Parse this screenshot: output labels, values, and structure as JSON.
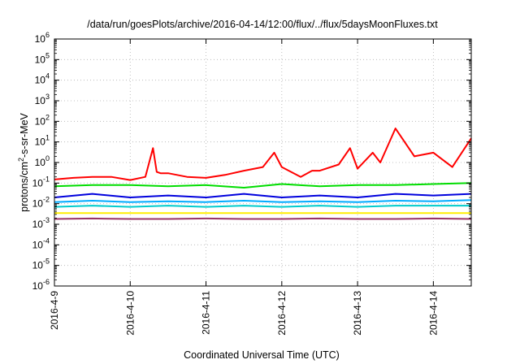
{
  "chart_data": {
    "type": "line",
    "title": "/data/run/goesPlots/archive/2016-04-14/12:00/flux/../flux/5daysMoonFluxes.txt",
    "xlabel": "Coordinated Universal Time (UTC)",
    "ylabel": "protons/cm²-s-sr-MeV",
    "ylabel_parts": {
      "pre": "protons/cm",
      "sup": "2",
      "post": "-s-sr-MeV"
    },
    "y_scale": "log",
    "ylim": [
      1e-06,
      1000000.0
    ],
    "xlim": [
      "2016-04-09",
      "2016-04-14 12:00"
    ],
    "x_ticks": [
      "2016-4-9",
      "2016-4-10",
      "2016-4-11",
      "2016-4-12",
      "2016-4-13",
      "2016-4-14"
    ],
    "y_ticks": [
      {
        "base": "10",
        "exp": "-6"
      },
      {
        "base": "10",
        "exp": "-5"
      },
      {
        "base": "10",
        "exp": "-4"
      },
      {
        "base": "10",
        "exp": "-3"
      },
      {
        "base": "10",
        "exp": "-2"
      },
      {
        "base": "10",
        "exp": "-1"
      },
      {
        "base": "10",
        "exp": "0"
      },
      {
        "base": "10",
        "exp": "1"
      },
      {
        "base": "10",
        "exp": "2"
      },
      {
        "base": "10",
        "exp": "3"
      },
      {
        "base": "10",
        "exp": "4"
      },
      {
        "base": "10",
        "exp": "5"
      },
      {
        "base": "10",
        "exp": "6"
      }
    ],
    "grid": true,
    "x_days_start": "2016-04-09",
    "series": [
      {
        "color": "#ff0000",
        "x": [
          0,
          0.25,
          0.5,
          0.75,
          1.0,
          1.2,
          1.3,
          1.35,
          1.4,
          1.5,
          1.75,
          2.0,
          2.25,
          2.5,
          2.75,
          2.9,
          3.0,
          3.25,
          3.4,
          3.5,
          3.75,
          3.9,
          4.0,
          4.2,
          4.3,
          4.5,
          4.75,
          5.0,
          5.25,
          5.5
        ],
        "y": [
          0.15,
          0.18,
          0.2,
          0.2,
          0.14,
          0.2,
          5.0,
          0.35,
          0.3,
          0.3,
          0.2,
          0.18,
          0.25,
          0.4,
          0.6,
          3.0,
          0.6,
          0.2,
          0.4,
          0.4,
          0.8,
          5.0,
          0.5,
          3.0,
          1.0,
          45.0,
          2.0,
          3.0,
          0.6,
          15.0
        ]
      },
      {
        "color": "#00dd00",
        "x": [
          0,
          0.5,
          1.0,
          1.5,
          2.0,
          2.5,
          3.0,
          3.5,
          4.0,
          4.5,
          5.0,
          5.5
        ],
        "y": [
          0.07,
          0.08,
          0.08,
          0.07,
          0.08,
          0.06,
          0.09,
          0.07,
          0.08,
          0.08,
          0.09,
          0.1
        ]
      },
      {
        "color": "#0000dd",
        "x": [
          0,
          0.5,
          1.0,
          1.5,
          2.0,
          2.5,
          3.0,
          3.5,
          4.0,
          4.5,
          5.0,
          5.5
        ],
        "y": [
          0.02,
          0.03,
          0.02,
          0.025,
          0.02,
          0.03,
          0.02,
          0.025,
          0.02,
          0.03,
          0.025,
          0.03
        ]
      },
      {
        "color": "#00aaff",
        "x": [
          0,
          0.5,
          1.0,
          1.5,
          2.0,
          2.5,
          3.0,
          3.5,
          4.0,
          4.5,
          5.0,
          5.5
        ],
        "y": [
          0.012,
          0.014,
          0.012,
          0.013,
          0.012,
          0.014,
          0.012,
          0.013,
          0.012,
          0.014,
          0.013,
          0.015
        ]
      },
      {
        "color": "#00cccc",
        "x": [
          0,
          0.5,
          1.0,
          1.5,
          2.0,
          2.5,
          3.0,
          3.5,
          4.0,
          4.5,
          5.0,
          5.5
        ],
        "y": [
          0.007,
          0.008,
          0.007,
          0.008,
          0.007,
          0.008,
          0.007,
          0.008,
          0.007,
          0.008,
          0.008,
          0.008
        ]
      },
      {
        "color": "#ffee00",
        "x": [
          0,
          5.5
        ],
        "y": [
          0.0035,
          0.0035
        ]
      },
      {
        "color": "#993366",
        "x": [
          0,
          0.5,
          1.0,
          1.5,
          2.0,
          2.5,
          3.0,
          3.5,
          4.0,
          4.5,
          5.0,
          5.5
        ],
        "y": [
          0.0018,
          0.0019,
          0.0018,
          0.0018,
          0.0019,
          0.0018,
          0.0018,
          0.0019,
          0.0018,
          0.0018,
          0.0019,
          0.0018
        ]
      }
    ]
  }
}
